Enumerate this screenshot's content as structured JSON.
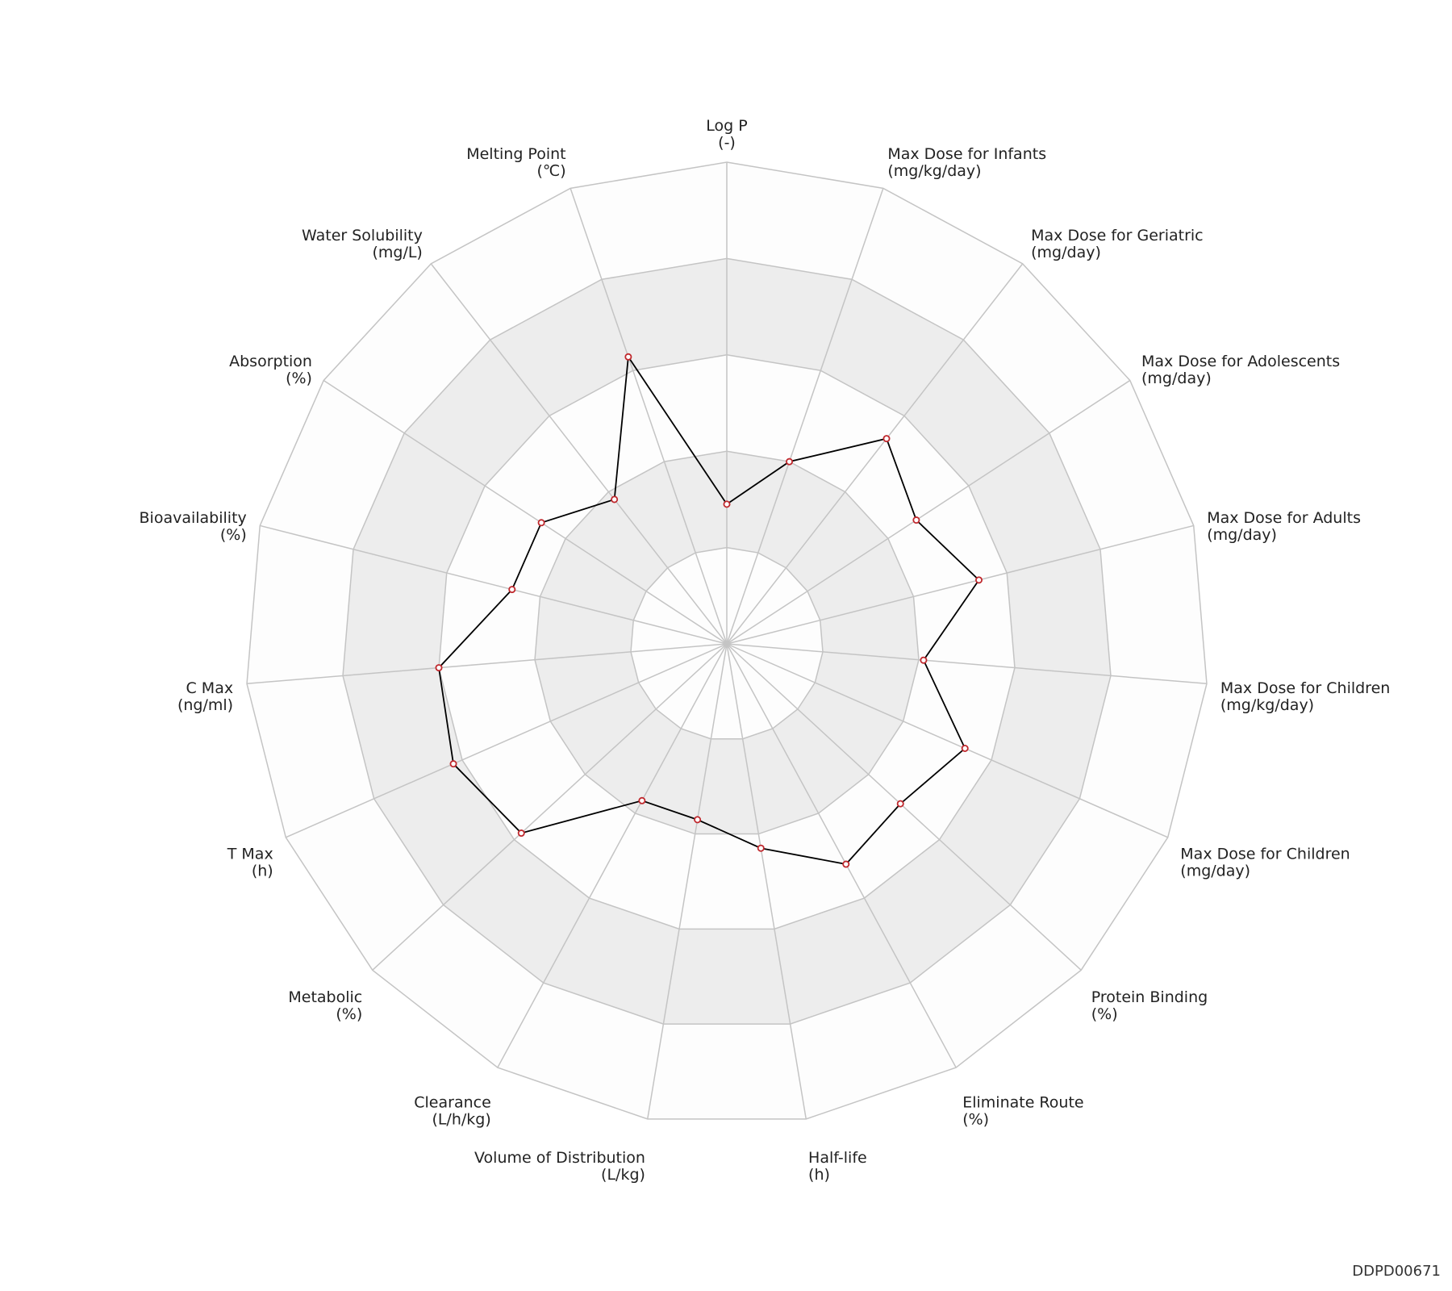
{
  "chart_data": {
    "type": "radar",
    "axes": [
      {
        "name": "Log P",
        "unit": "(-)"
      },
      {
        "name": "Max Dose for Infants",
        "unit": "(mg/kg/day)"
      },
      {
        "name": "Max Dose for Geriatric",
        "unit": "(mg/day)"
      },
      {
        "name": "Max Dose for Adolescents",
        "unit": "(mg/day)"
      },
      {
        "name": "Max Dose for Adults",
        "unit": "(mg/day)"
      },
      {
        "name": "Max Dose for Children",
        "unit": "(mg/kg/day)"
      },
      {
        "name": "Max Dose for Children",
        "unit": "(mg/day)"
      },
      {
        "name": "Protein Binding",
        "unit": "(%)"
      },
      {
        "name": "Eliminate Route",
        "unit": "(%)"
      },
      {
        "name": "Half-life",
        "unit": "(h)"
      },
      {
        "name": "Volume of Distribution",
        "unit": "(L/kg)"
      },
      {
        "name": "Clearance",
        "unit": "(L/h/kg)"
      },
      {
        "name": "Metabolic",
        "unit": "(%)"
      },
      {
        "name": "T Max",
        "unit": "(h)"
      },
      {
        "name": "C Max",
        "unit": "(ng/ml)"
      },
      {
        "name": "Bioavailability",
        "unit": "(%)"
      },
      {
        "name": "Absorption",
        "unit": "(%)"
      },
      {
        "name": "Water Solubility",
        "unit": "(mg/L)"
      },
      {
        "name": "Melting Point",
        "unit": "(℃)"
      }
    ],
    "values": [
      0.29,
      0.4,
      0.54,
      0.47,
      0.54,
      0.41,
      0.54,
      0.49,
      0.52,
      0.43,
      0.37,
      0.37,
      0.58,
      0.62,
      0.6,
      0.46,
      0.46,
      0.38,
      0.63
    ],
    "range": [
      0,
      1
    ],
    "levels": 5,
    "colors": {
      "band_dark": "#ededed",
      "band_light": "#fdfdfd",
      "grid": "#c4c4c4",
      "line": "#000000",
      "marker": "#c0282d"
    }
  },
  "footer": {
    "id": "DDPD00671"
  }
}
